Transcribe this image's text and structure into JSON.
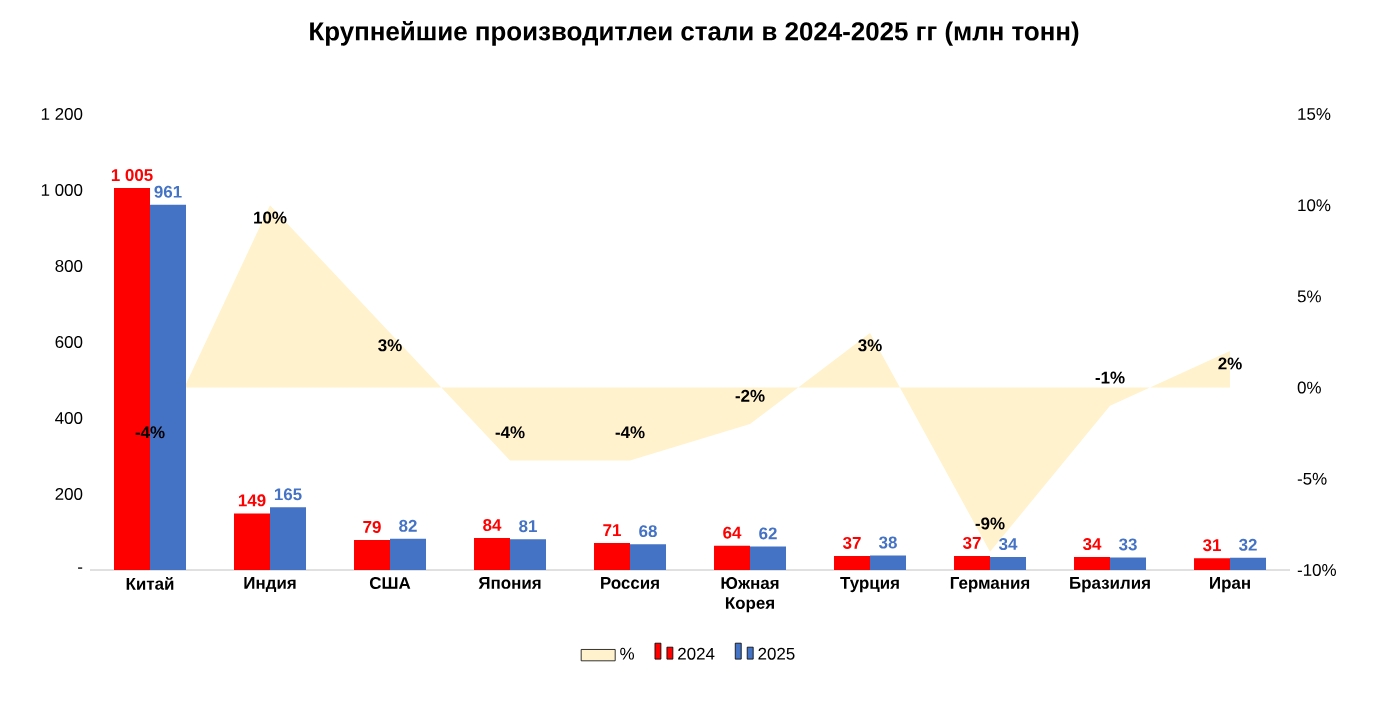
{
  "chart_data": {
    "type": "bar",
    "title": "Крупнейшие производитлеи стали в 2024-2025 гг (млн тонн)",
    "categories": [
      "Китай",
      "Индия",
      "США",
      "Япония",
      "Россия",
      "Южная Корея",
      "Турция",
      "Германия",
      "Бразилия",
      "Иран"
    ],
    "series": [
      {
        "name": "%",
        "type": "area",
        "axis": "y2",
        "color": "#fff2cc",
        "values": [
          -4,
          10,
          3,
          -4,
          -4,
          -2,
          3,
          -9,
          -1,
          2
        ],
        "value_labels": [
          "-4%",
          "10%",
          "3%",
          "-4%",
          "-4%",
          "-2%",
          "3%",
          "-9%",
          "-1%",
          "2%"
        ]
      },
      {
        "name": "2024",
        "color": "#ff0000",
        "values": [
          1005,
          149,
          79,
          84,
          71,
          64,
          37,
          37,
          34,
          31
        ],
        "value_labels": [
          "1 005",
          "149",
          "79",
          "84",
          "71",
          "64",
          "37",
          "37",
          "34",
          "31"
        ]
      },
      {
        "name": "2025",
        "color": "#4472c4",
        "values": [
          961,
          165,
          82,
          81,
          68,
          62,
          38,
          34,
          33,
          32
        ],
        "value_labels": [
          "961",
          "165",
          "82",
          "81",
          "68",
          "62",
          "38",
          "34",
          "33",
          "32"
        ]
      }
    ],
    "ylim": [
      0,
      1200
    ],
    "yticks": [
      {
        "value": 0,
        "label": "-"
      },
      200,
      400,
      600,
      800,
      {
        "value": 1000,
        "label": "1 000"
      },
      {
        "value": 1200,
        "label": "1 200"
      }
    ],
    "y2lim": [
      -10,
      15
    ],
    "y2ticks": [
      {
        "value": -10,
        "label": "-10%"
      },
      {
        "value": -5,
        "label": "-5%"
      },
      {
        "value": 0,
        "label": "0%"
      },
      {
        "value": 5,
        "label": "5%"
      },
      {
        "value": 10,
        "label": "10%"
      },
      {
        "value": 15,
        "label": "15%"
      }
    ],
    "legend": "bottom",
    "grid": false
  }
}
